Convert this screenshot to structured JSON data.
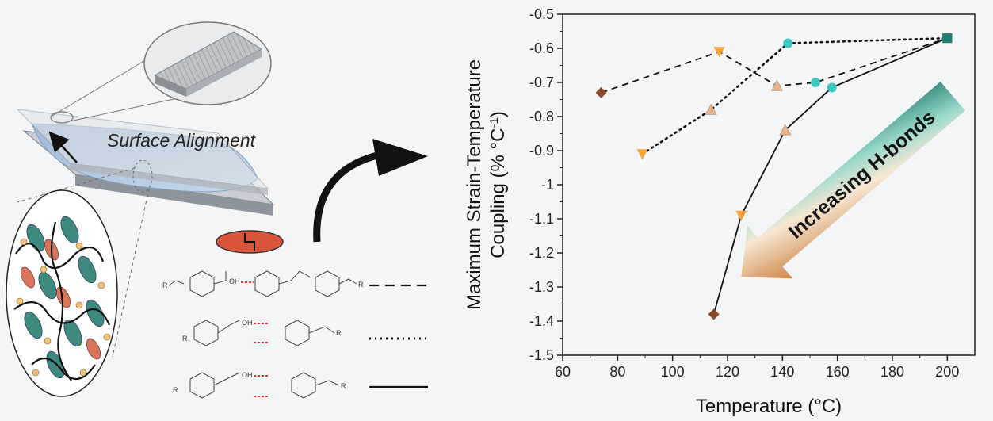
{
  "schematic": {
    "surface_label": "Surface Alignment",
    "legend_styles": [
      "dashed",
      "dotted",
      "solid"
    ]
  },
  "colors": {
    "dark_brown": "#8b4a2b",
    "orange": "#f5a33c",
    "peach": "#e8b48c",
    "cyan": "#3cc8c0",
    "teal": "#1f7f73"
  },
  "chart_data": {
    "type": "scatter",
    "xlabel": "Temperature (°C)",
    "ylabel_line1": "Maximum Strain-Temperature",
    "ylabel_line2": "Coupling (% °C",
    "ylabel_sup": "-1",
    "ylabel_end": ")",
    "xlim": [
      60,
      210
    ],
    "ylim": [
      -1.5,
      -0.5
    ],
    "xticks": [
      "60",
      "80",
      "100",
      "120",
      "140",
      "160",
      "180",
      "200"
    ],
    "yticks": [
      "-0.5",
      "-0.6",
      "-0.7",
      "-0.8",
      "-0.9",
      "-1",
      "-1.1",
      "-1.2",
      "-1.3",
      "-1.4",
      "-1.5"
    ],
    "annotation": "Increasing H-bonds",
    "series": [
      {
        "line": "dashed",
        "points": [
          {
            "x": 74,
            "y": -0.73,
            "marker": "diamond",
            "color": "#8b4a2b"
          },
          {
            "x": 117,
            "y": -0.61,
            "marker": "triangle-down",
            "color": "#f5a33c"
          },
          {
            "x": 138,
            "y": -0.71,
            "marker": "triangle-up",
            "color": "#e8b48c"
          },
          {
            "x": 152,
            "y": -0.7,
            "marker": "circle",
            "color": "#3cc8c0"
          },
          {
            "x": 200,
            "y": -0.57,
            "marker": "square",
            "color": "#1f7f73"
          }
        ]
      },
      {
        "line": "dotted",
        "points": [
          {
            "x": 89,
            "y": -0.91,
            "marker": "triangle-down",
            "color": "#f5a33c"
          },
          {
            "x": 114,
            "y": -0.78,
            "marker": "triangle-up",
            "color": "#e8b48c"
          },
          {
            "x": 142,
            "y": -0.585,
            "marker": "circle",
            "color": "#3cc8c0"
          },
          {
            "x": 200,
            "y": -0.57,
            "marker": "square",
            "color": "#1f7f73"
          }
        ]
      },
      {
        "line": "solid",
        "points": [
          {
            "x": 115,
            "y": -1.38,
            "marker": "diamond",
            "color": "#8b4a2b"
          },
          {
            "x": 125,
            "y": -1.09,
            "marker": "triangle-down",
            "color": "#f5a33c"
          },
          {
            "x": 141,
            "y": -0.84,
            "marker": "triangle-up",
            "color": "#e8b48c"
          },
          {
            "x": 158,
            "y": -0.715,
            "marker": "circle",
            "color": "#3cc8c0"
          },
          {
            "x": 200,
            "y": -0.57,
            "marker": "square",
            "color": "#1f7f73"
          }
        ]
      }
    ]
  }
}
